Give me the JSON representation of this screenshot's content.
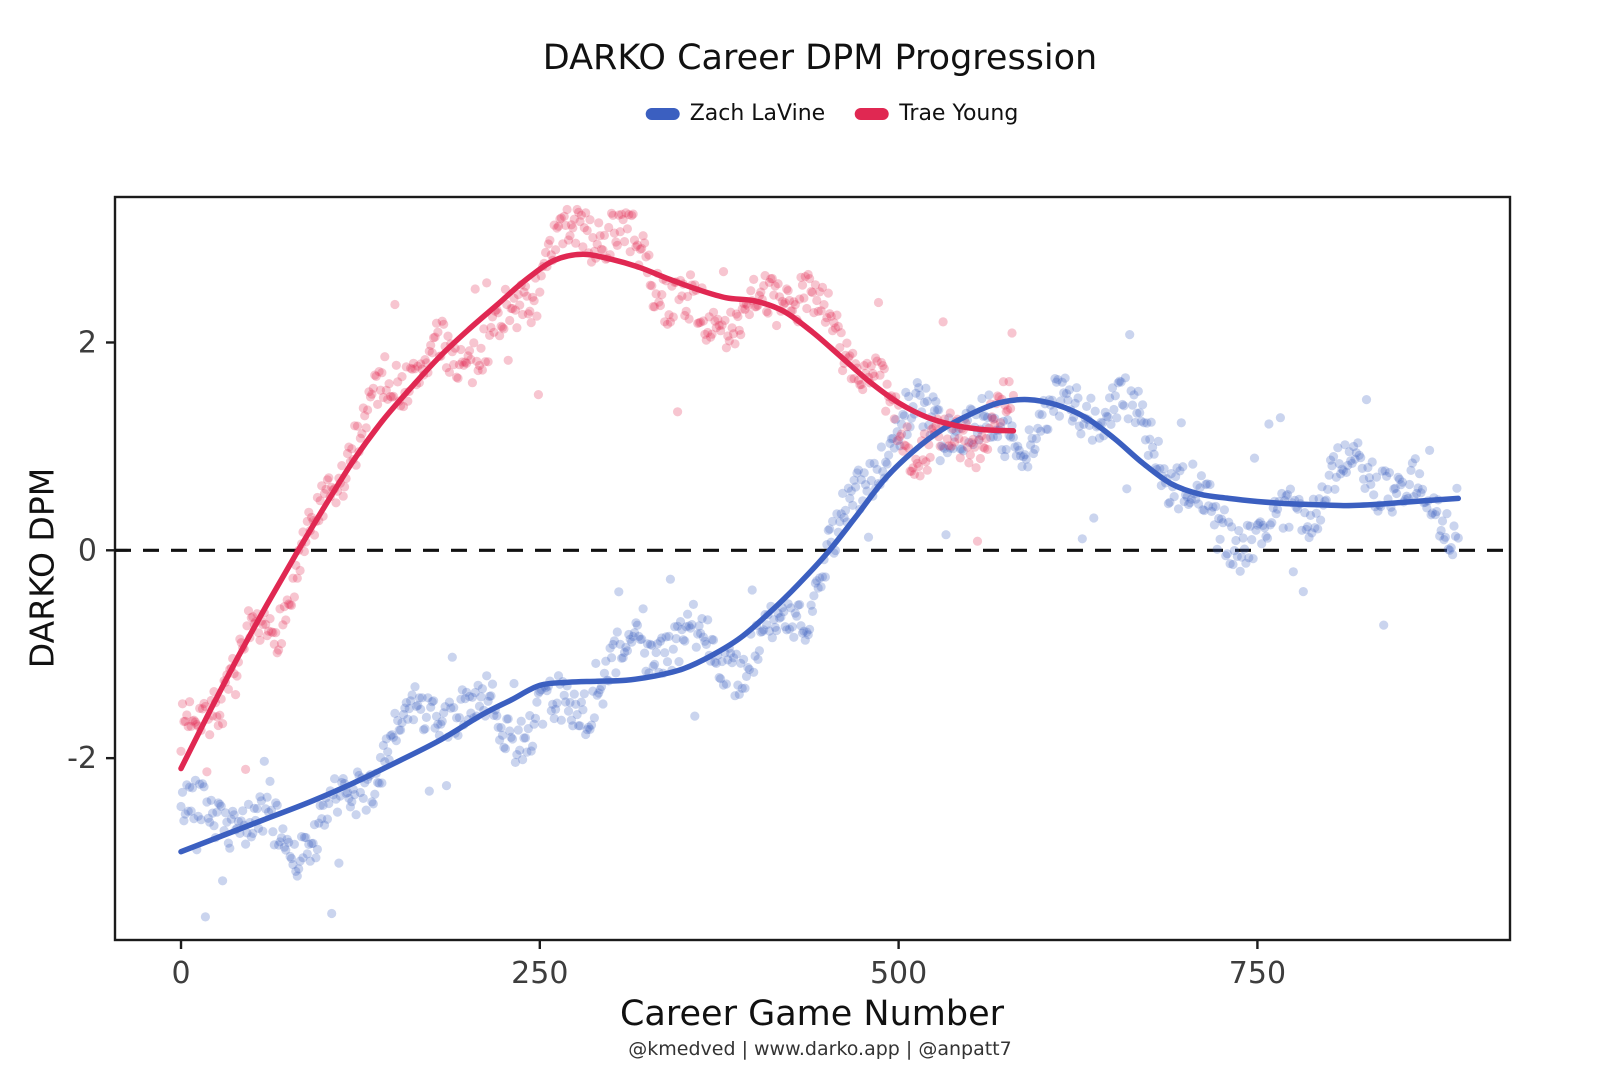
{
  "chart_data": {
    "type": "scatter",
    "title": "DARKO Career DPM Progression",
    "xlabel": "Career Game Number",
    "ylabel": "DARKO DPM",
    "footer": "@kmedved | www.darko.app | @anpatt7",
    "xlim": [
      -46,
      926
    ],
    "ylim": [
      -3.75,
      3.4
    ],
    "xticks": [
      0,
      250,
      500,
      750
    ],
    "yticks": [
      -2,
      0,
      2
    ],
    "grid": false,
    "legend_position": "top",
    "zero_line": {
      "y": 0,
      "style": "dashed",
      "color": "#111111"
    },
    "legend": [
      {
        "name": "Zach LaVine",
        "color": "#3B5FC0"
      },
      {
        "name": "Trae Young",
        "color": "#E02852"
      }
    ],
    "series": [
      {
        "name": "Zach LaVine",
        "color": "#3B5FC0",
        "max_game": 890,
        "trend": [
          [
            0,
            -2.9
          ],
          [
            30,
            -2.74
          ],
          [
            60,
            -2.58
          ],
          [
            90,
            -2.42
          ],
          [
            120,
            -2.24
          ],
          [
            150,
            -2.04
          ],
          [
            180,
            -1.83
          ],
          [
            210,
            -1.58
          ],
          [
            230,
            -1.44
          ],
          [
            250,
            -1.3
          ],
          [
            270,
            -1.27
          ],
          [
            290,
            -1.26
          ],
          [
            310,
            -1.25
          ],
          [
            330,
            -1.21
          ],
          [
            350,
            -1.14
          ],
          [
            370,
            -1.01
          ],
          [
            390,
            -0.84
          ],
          [
            410,
            -0.6
          ],
          [
            430,
            -0.33
          ],
          [
            450,
            -0.03
          ],
          [
            470,
            0.32
          ],
          [
            490,
            0.68
          ],
          [
            510,
            0.95
          ],
          [
            530,
            1.16
          ],
          [
            550,
            1.31
          ],
          [
            570,
            1.42
          ],
          [
            590,
            1.45
          ],
          [
            610,
            1.4
          ],
          [
            630,
            1.28
          ],
          [
            650,
            1.08
          ],
          [
            670,
            0.84
          ],
          [
            690,
            0.64
          ],
          [
            710,
            0.54
          ],
          [
            730,
            0.5
          ],
          [
            750,
            0.47
          ],
          [
            770,
            0.45
          ],
          [
            790,
            0.44
          ],
          [
            810,
            0.43
          ],
          [
            830,
            0.44
          ],
          [
            850,
            0.46
          ],
          [
            870,
            0.48
          ],
          [
            890,
            0.5
          ]
        ],
        "scatter": {
          "seed": 42,
          "step": 1,
          "wave": [
            0.32,
            26,
            1.3,
            0.17,
            8,
            0.5
          ],
          "noise": 0.22,
          "outlier_rate": 0.05,
          "outlier_amp": 0.6,
          "radius": 4.6,
          "opacity": 0.27
        }
      },
      {
        "name": "Trae Young",
        "color": "#E02852",
        "max_game": 580,
        "trend": [
          [
            0,
            -2.1
          ],
          [
            20,
            -1.55
          ],
          [
            40,
            -1.02
          ],
          [
            60,
            -0.52
          ],
          [
            80,
            -0.04
          ],
          [
            100,
            0.42
          ],
          [
            120,
            0.86
          ],
          [
            140,
            1.24
          ],
          [
            160,
            1.56
          ],
          [
            180,
            1.86
          ],
          [
            200,
            2.12
          ],
          [
            220,
            2.36
          ],
          [
            240,
            2.6
          ],
          [
            260,
            2.79
          ],
          [
            280,
            2.85
          ],
          [
            300,
            2.8
          ],
          [
            320,
            2.72
          ],
          [
            340,
            2.61
          ],
          [
            360,
            2.51
          ],
          [
            380,
            2.43
          ],
          [
            400,
            2.4
          ],
          [
            420,
            2.3
          ],
          [
            440,
            2.1
          ],
          [
            460,
            1.86
          ],
          [
            480,
            1.62
          ],
          [
            500,
            1.42
          ],
          [
            520,
            1.28
          ],
          [
            540,
            1.2
          ],
          [
            560,
            1.16
          ],
          [
            580,
            1.15
          ]
        ],
        "scatter": {
          "seed": 7,
          "step": 1,
          "wave": [
            0.28,
            24,
            2.0,
            0.15,
            7,
            1.0
          ],
          "noise": 0.22,
          "outlier_rate": 0.05,
          "outlier_amp": 0.55,
          "radius": 4.6,
          "opacity": 0.27
        }
      }
    ],
    "axis": {
      "border_color": "#1b1b1b",
      "tick_color": "#1b1b1b",
      "tick_label_color": "#3d3d3d"
    }
  }
}
